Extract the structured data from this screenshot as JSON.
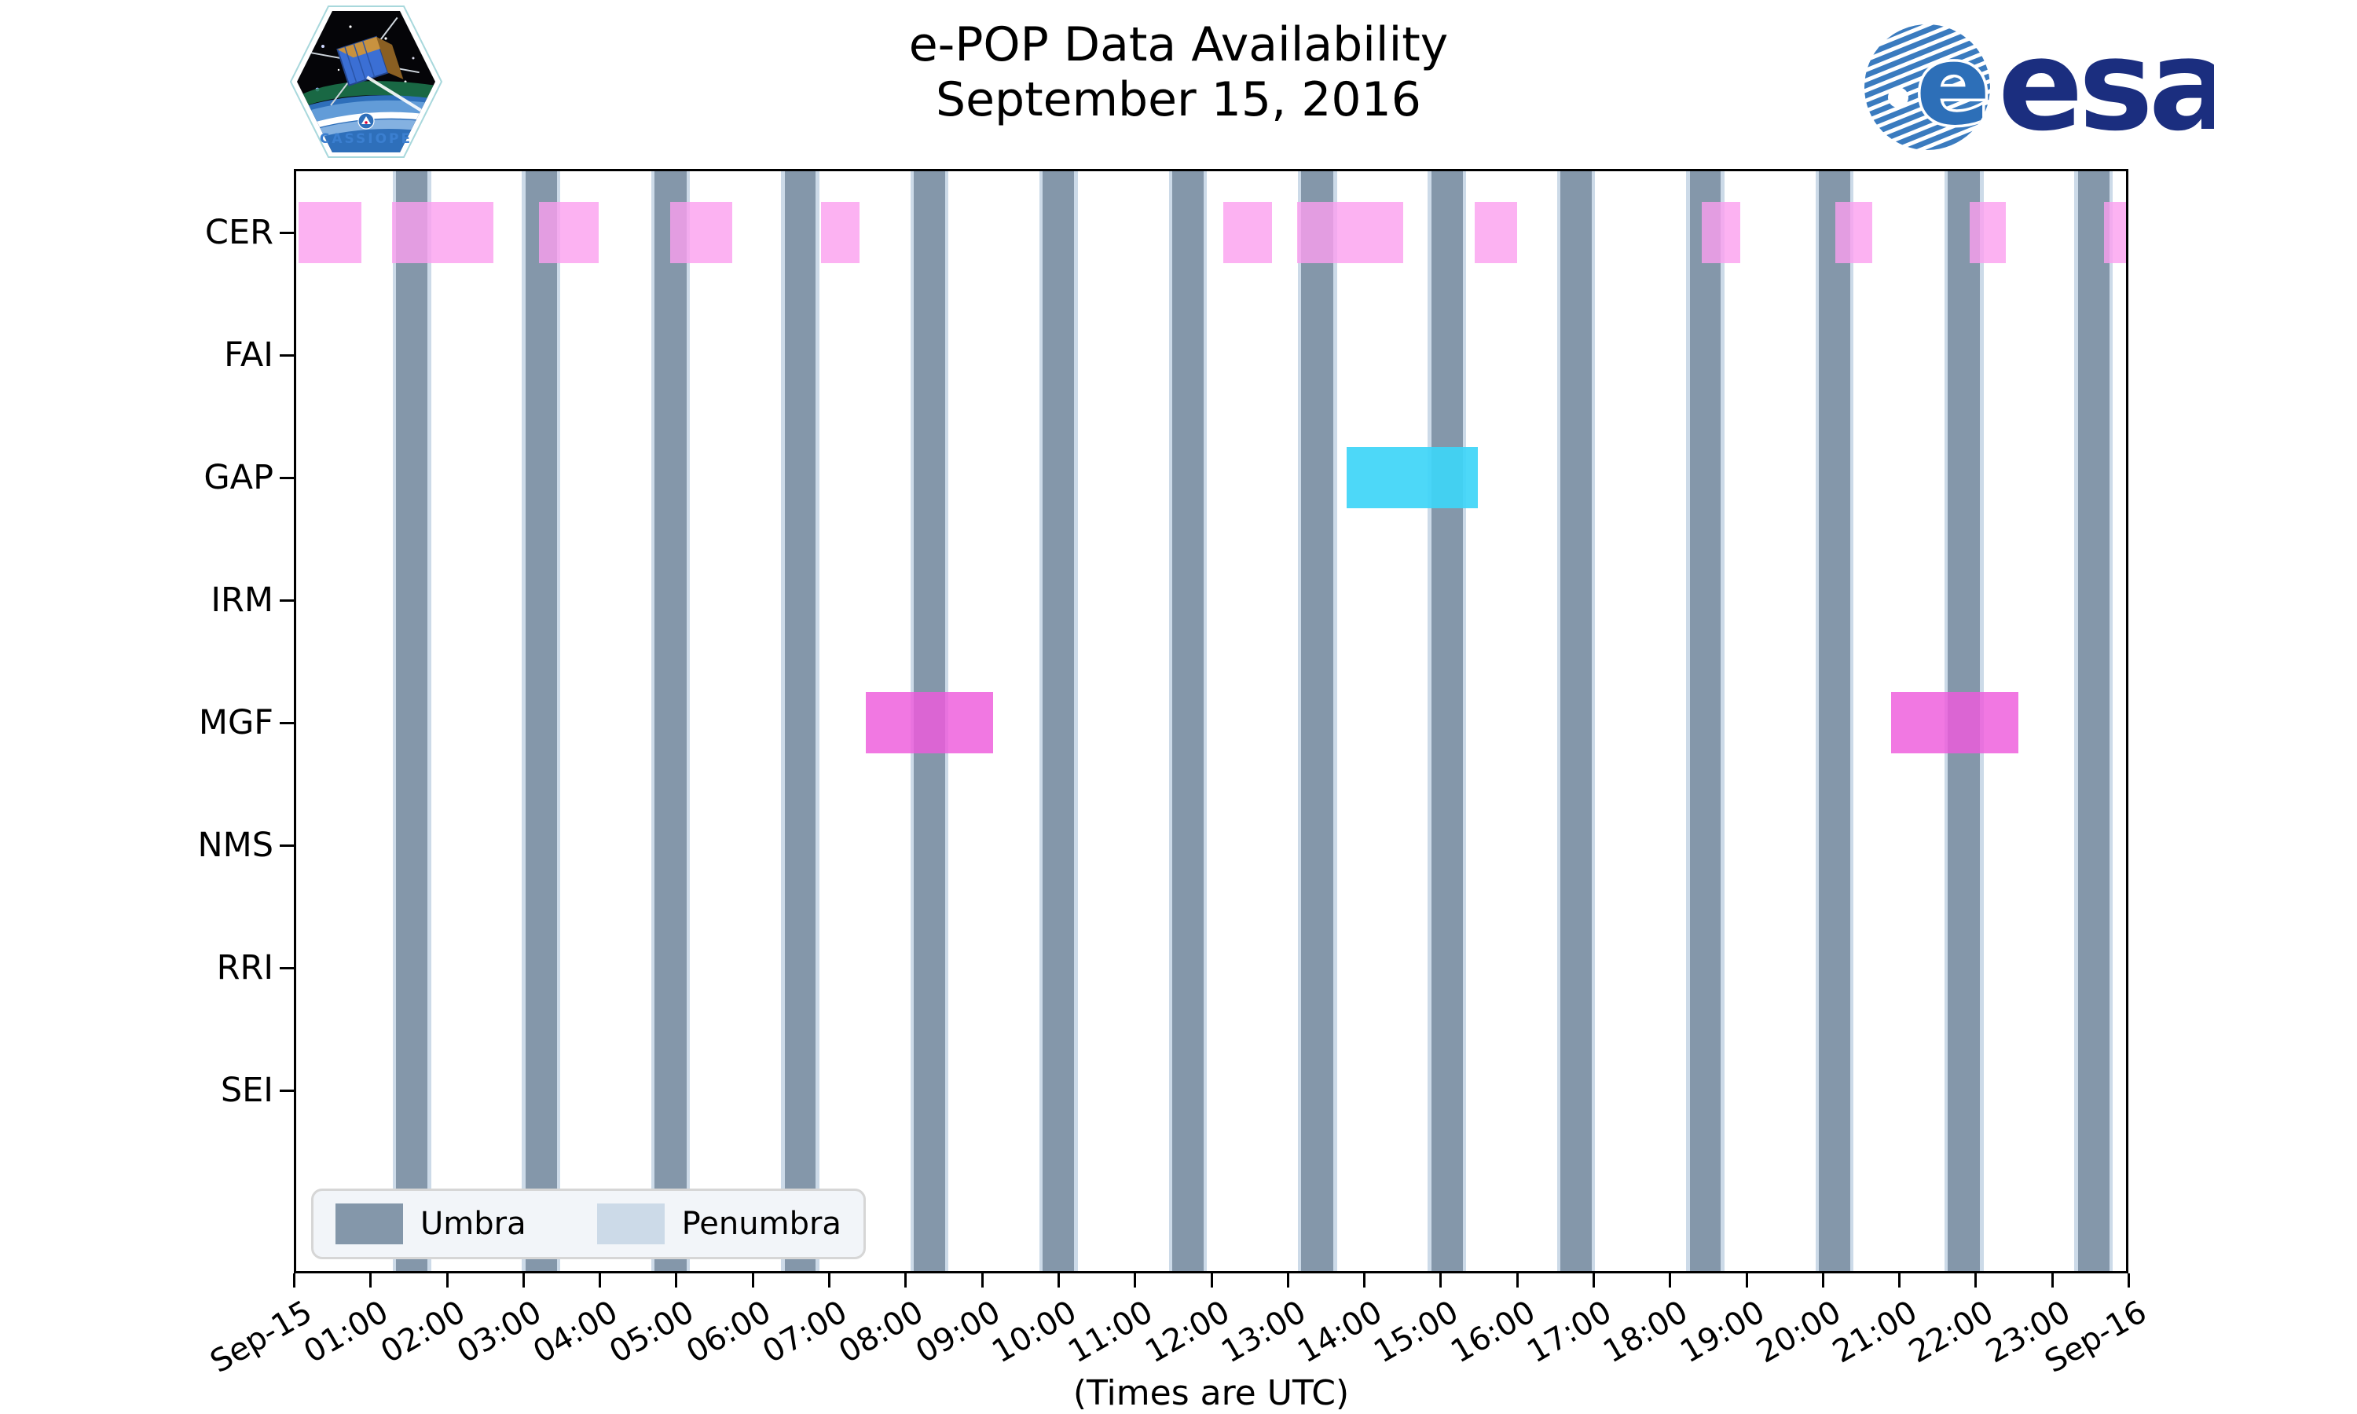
{
  "title": {
    "line1": "e-POP Data Availability",
    "line2": "September 15, 2016"
  },
  "logos": {
    "cassiope": {
      "label": "CASSIOPE"
    },
    "esa": {
      "label": "esa"
    }
  },
  "legend": {
    "entries": [
      {
        "label": "Umbra",
        "color": "#8497AA"
      },
      {
        "label": "Penumbra",
        "color": "#CCDAE8"
      }
    ]
  },
  "axis": {
    "x_caption": "(Times are UTC)",
    "y_labels": [
      "CER",
      "FAI",
      "GAP",
      "IRM",
      "MGF",
      "NMS",
      "RRI",
      "SEI"
    ],
    "x_tick_labels": [
      "Sep-15",
      "01:00",
      "02:00",
      "03:00",
      "04:00",
      "05:00",
      "06:00",
      "07:00",
      "08:00",
      "09:00",
      "10:00",
      "11:00",
      "12:00",
      "13:00",
      "14:00",
      "15:00",
      "16:00",
      "17:00",
      "18:00",
      "19:00",
      "20:00",
      "21:00",
      "22:00",
      "23:00",
      "Sep-16"
    ]
  },
  "colors": {
    "umbra": "#8497AA",
    "penumbra": "#CCDAE8",
    "cer_bar": "rgba(251,159,239,0.80)",
    "gap_bar": "rgba(62,213,247,0.92)",
    "mgf_bar": "rgba(238,90,220,0.82)",
    "esa_blue": "#1B2E7F",
    "globe_blue": "#3A7BBF"
  },
  "chart_data": {
    "type": "bar",
    "subtype": "timeline-availability",
    "title": "e-POP Data Availability September 15, 2016",
    "xlabel": "(Times are UTC)",
    "x_range_hours": [
      0,
      24
    ],
    "x_tick_step_hours": 1,
    "grid": false,
    "legend_position": "lower-left-inside",
    "instruments": [
      "CER",
      "FAI",
      "GAP",
      "IRM",
      "MGF",
      "NMS",
      "RRI",
      "SEI"
    ],
    "umbra_intervals_hours": [
      [
        1.34,
        1.75
      ],
      [
        3.03,
        3.44
      ],
      [
        4.72,
        5.14
      ],
      [
        6.42,
        6.83
      ],
      [
        8.11,
        8.52
      ],
      [
        9.8,
        10.21
      ],
      [
        11.49,
        11.9
      ],
      [
        13.18,
        13.6
      ],
      [
        14.88,
        15.29
      ],
      [
        16.57,
        16.98
      ],
      [
        18.26,
        18.67
      ],
      [
        19.95,
        20.36
      ],
      [
        21.64,
        22.06
      ],
      [
        23.34,
        23.75
      ]
    ],
    "penumbra_edge_hours": 0.045,
    "series": [
      {
        "name": "CER",
        "color": "rgba(251,159,239,0.80)",
        "intervals": [
          [
            0.06,
            0.88
          ],
          [
            1.28,
            2.61
          ],
          [
            3.21,
            3.99
          ],
          [
            4.92,
            5.74
          ],
          [
            6.9,
            7.4
          ],
          [
            12.16,
            12.8
          ],
          [
            13.13,
            14.51
          ],
          [
            15.45,
            16.0
          ],
          [
            18.42,
            18.92
          ],
          [
            20.17,
            20.65
          ],
          [
            21.92,
            22.4
          ],
          [
            23.68,
            24.0
          ]
        ]
      },
      {
        "name": "GAP",
        "color": "rgba(62,213,247,0.92)",
        "intervals": [
          [
            13.77,
            15.49
          ]
        ]
      },
      {
        "name": "MGF",
        "color": "rgba(238,90,220,0.82)",
        "intervals": [
          [
            7.48,
            9.15
          ],
          [
            20.9,
            22.56
          ]
        ]
      }
    ]
  }
}
